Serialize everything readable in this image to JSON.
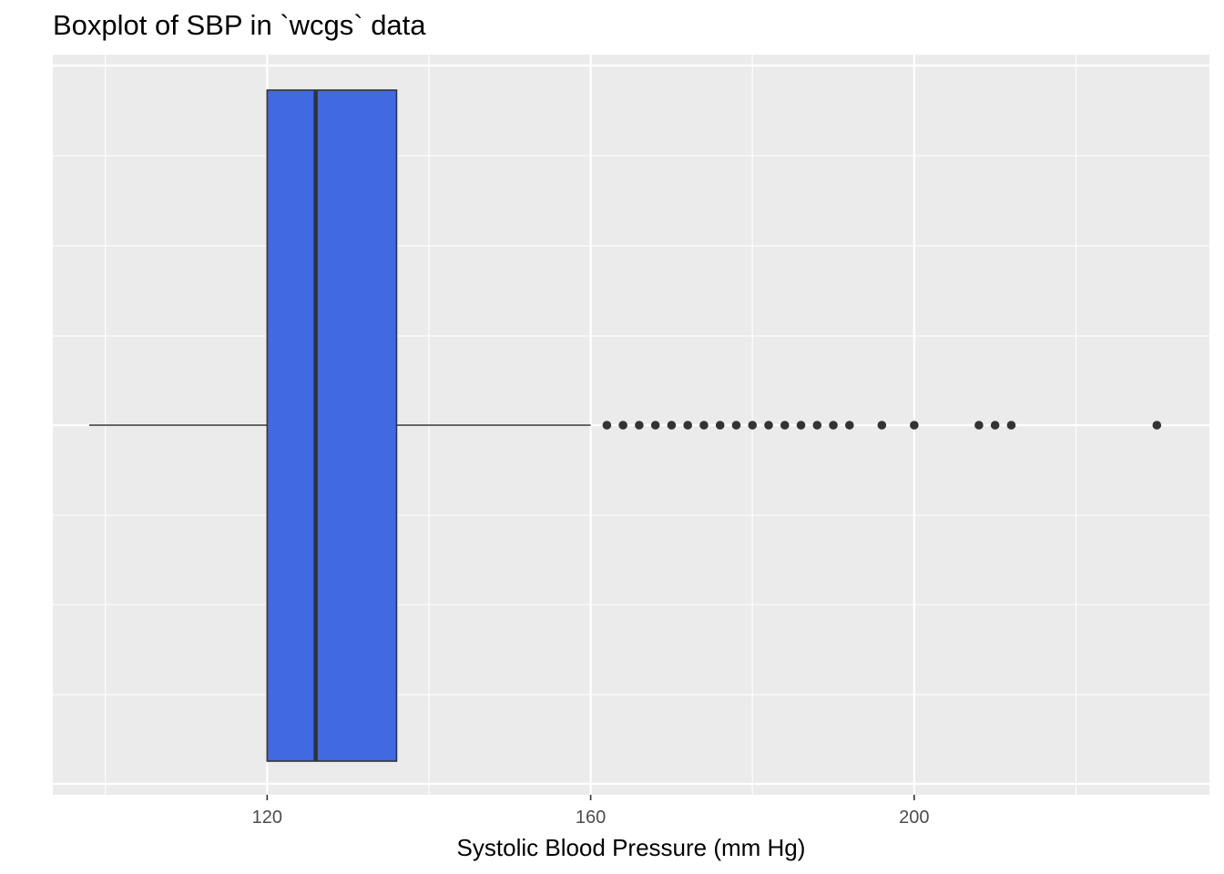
{
  "chart_data": {
    "type": "boxplot",
    "orientation": "horizontal",
    "title": "Boxplot of SBP in `wcgs` data",
    "xlabel": "Systolic Blood Pressure (mm Hg)",
    "ylabel": "",
    "xlim": [
      93.5,
      236.5
    ],
    "x_ticks": [
      120,
      160,
      200
    ],
    "x_tick_labels": [
      "120",
      "160",
      "200"
    ],
    "x_minor_gridlines": [
      100,
      140,
      180,
      220
    ],
    "grid": true,
    "box": {
      "whisker_low": 98,
      "q1": 120,
      "median": 126,
      "q3": 136,
      "whisker_high": 160
    },
    "outliers": [
      162,
      164,
      166,
      168,
      170,
      172,
      174,
      176,
      178,
      180,
      182,
      184,
      186,
      188,
      190,
      192,
      196,
      200,
      208,
      210,
      212,
      230
    ],
    "fill_color": "#4169E1",
    "line_color": "#333333",
    "panel_background": "#EBEBEB",
    "gridline_color": "#FFFFFF"
  }
}
